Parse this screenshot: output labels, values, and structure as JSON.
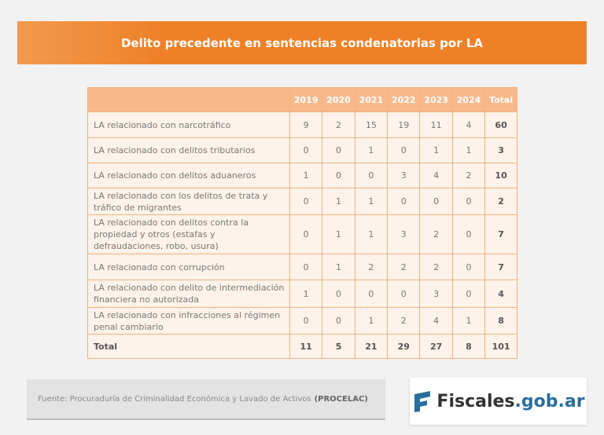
{
  "header": {
    "title": "Delito precedente en sentencias condenatorias por LA"
  },
  "table": {
    "columns": [
      "2019",
      "2020",
      "2021",
      "2022",
      "2023",
      "2024",
      "Total"
    ],
    "rows": [
      {
        "label": "LA relacionado con narcotráfico",
        "values": [
          9,
          2,
          15,
          19,
          11,
          4
        ],
        "total": 60
      },
      {
        "label": "LA relacionado con delitos tributarios",
        "values": [
          0,
          0,
          1,
          0,
          1,
          1
        ],
        "total": 3
      },
      {
        "label": "LA relacionado con delitos aduaneros",
        "values": [
          1,
          0,
          0,
          3,
          4,
          2
        ],
        "total": 10
      },
      {
        "label": "LA relacionado con los delitos de trata y tráfico de migrantes",
        "values": [
          0,
          1,
          1,
          0,
          0,
          0
        ],
        "total": 2
      },
      {
        "label": "LA relacionado con delitos contra la propiedad y otros (estafas y defraudaciones, robo, usura)",
        "values": [
          0,
          1,
          1,
          3,
          2,
          0
        ],
        "total": 7
      },
      {
        "label": "LA relacionado con corrupción",
        "values": [
          0,
          1,
          2,
          2,
          2,
          0
        ],
        "total": 7
      },
      {
        "label": "LA relacionado con delito de intermediación financiera no autorizada",
        "values": [
          1,
          0,
          0,
          0,
          3,
          0
        ],
        "total": 4
      },
      {
        "label": "LA relacionado con infracciones al régimen penal cambiario",
        "values": [
          0,
          0,
          1,
          2,
          4,
          1
        ],
        "total": 8
      }
    ],
    "totals": {
      "label": "Total",
      "values": [
        11,
        5,
        21,
        29,
        27,
        8
      ],
      "total": 101
    }
  },
  "footer": {
    "source": "Fuente: Procuraduría de Criminalidad Económica y Lavado de Activos",
    "source_org": "(PROCELAC)",
    "logo_name": "Fiscales",
    "logo_domain": ".gob.ar"
  }
}
